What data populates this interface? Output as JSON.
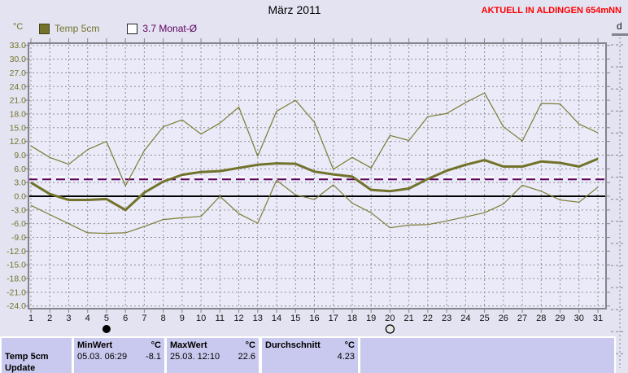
{
  "header": {
    "title": "März 2011",
    "station_label": "AKTUELL IN ALDINGEN 654mNN",
    "y_axis_unit": "°C",
    "right_axis_label": "d"
  },
  "legend": {
    "series1": "Temp 5cm",
    "series2": "3.7 Monat-Ø"
  },
  "colors": {
    "page_bg": "#e3e3f2",
    "plot_bg": "#eaeaf9",
    "grid": "#909090",
    "frame": "#84848c",
    "olive_line": "#7c7c34",
    "olive_thick": "#72722a",
    "olive_text": "#74742c",
    "month_avg_line": "#ffffff",
    "longterm_avg_line": "#5c005c",
    "zero_line": "#000000",
    "accent_red": "#ff0000",
    "table_cell_bg": "#c9c9ef"
  },
  "chart_data": {
    "type": "line",
    "title": "März 2011",
    "xlabel": "",
    "ylabel": "°C",
    "ylim": [
      -24,
      33
    ],
    "ytick_step": 3,
    "grid": true,
    "legend_position": "top-left",
    "x": [
      1,
      2,
      3,
      4,
      5,
      6,
      7,
      8,
      9,
      10,
      11,
      12,
      13,
      14,
      15,
      16,
      17,
      18,
      19,
      20,
      21,
      22,
      23,
      24,
      25,
      26,
      27,
      28,
      29,
      30,
      31
    ],
    "series": [
      {
        "name": "Temp 5cm Tagesmaximum",
        "style": "thin",
        "values": [
          11.0,
          8.5,
          7.0,
          10.2,
          12.0,
          2.3,
          10.0,
          15.2,
          16.7,
          13.6,
          16.0,
          19.5,
          8.8,
          18.6,
          21.0,
          16.2,
          5.9,
          8.5,
          6.2,
          13.3,
          12.2,
          17.4,
          18.1,
          20.5,
          22.6,
          15.2,
          12.1,
          20.3,
          20.2,
          15.8,
          13.9
        ]
      },
      {
        "name": "Temp 5cm Tagesmittel",
        "style": "thick",
        "values": [
          3.0,
          0.5,
          -0.8,
          -0.8,
          -0.6,
          -3.0,
          0.8,
          3.2,
          4.7,
          5.3,
          5.5,
          6.2,
          6.9,
          7.2,
          7.1,
          5.4,
          4.8,
          4.3,
          1.4,
          1.1,
          1.7,
          3.8,
          5.6,
          6.9,
          7.9,
          6.5,
          6.5,
          7.6,
          7.3,
          6.5,
          8.2
        ]
      },
      {
        "name": "Temp 5cm Tagesminimum",
        "style": "thin",
        "values": [
          -2.0,
          -4.0,
          -6.0,
          -8.0,
          -8.1,
          -8.0,
          -6.6,
          -5.1,
          -4.7,
          -4.4,
          0.0,
          -3.8,
          -5.9,
          3.5,
          0.3,
          -0.7,
          2.5,
          -1.5,
          -3.6,
          -6.9,
          -6.3,
          -6.2,
          -5.4,
          -4.5,
          -3.6,
          -1.7,
          2.4,
          1.1,
          -0.8,
          -1.3,
          2.0
        ]
      }
    ],
    "reference_lines": [
      {
        "label": "Durchschnitt",
        "value": 4.23,
        "color": "#ffffff",
        "dashed": true
      },
      {
        "label": "3.7 Monat-Ø",
        "value": 3.7,
        "color": "#5c005c",
        "dashed": true
      }
    ],
    "markers": [
      {
        "day": 5,
        "type": "new-moon",
        "fill": "black"
      },
      {
        "day": 20,
        "type": "full-moon",
        "fill": "open"
      }
    ]
  },
  "table": {
    "sensor_label": "Temp 5cm",
    "next_row_partial": "Update",
    "min": {
      "header": "MinWert",
      "unit": "°C",
      "datetime": "05.03.  06:29",
      "value": "-8.1"
    },
    "max": {
      "header": "MaxWert",
      "unit": "°C",
      "datetime": "25.03.  12:10",
      "value": "22.6"
    },
    "avg": {
      "header": "Durchschnitt",
      "unit": "°C",
      "value": "4.23"
    }
  }
}
